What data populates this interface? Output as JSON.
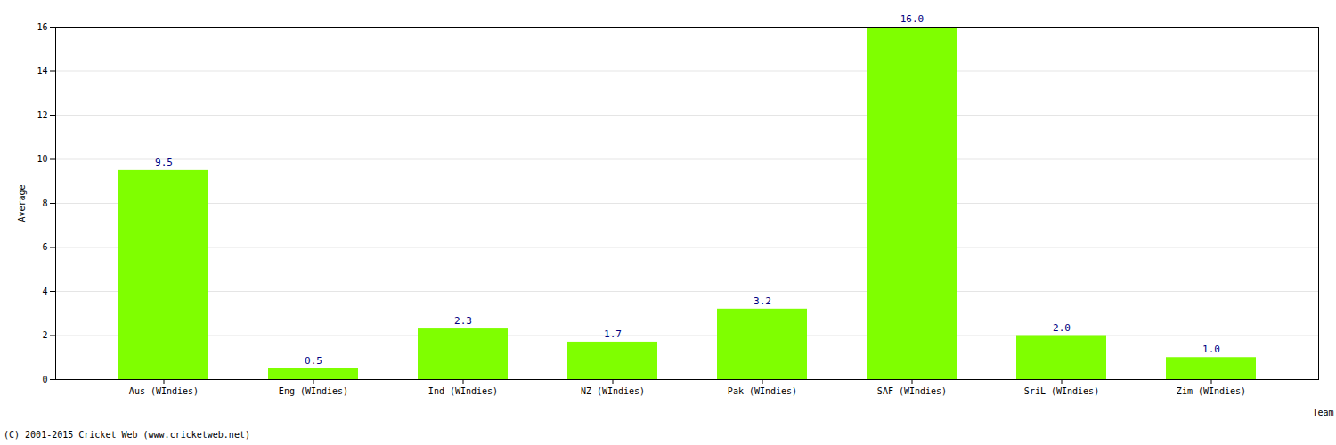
{
  "chart_data": {
    "type": "bar",
    "caption": "(C) 2001-2015 Cricket Web (www.cricketweb.net)",
    "x_label": "Team",
    "y_label": "Average",
    "categories": [
      "Aus (WIndies)",
      "Eng (WIndies)",
      "Ind (WIndies)",
      "NZ (WIndies)",
      "Pak (WIndies)",
      "SAF (WIndies)",
      "SriL (WIndies)",
      "Zim (WIndies)"
    ],
    "values": [
      9.5,
      0.5,
      2.3,
      1.7,
      3.2,
      16.0,
      2.0,
      1.0
    ],
    "value_labels": [
      "9.5",
      "0.5",
      "2.3",
      "1.7",
      "3.2",
      "16.0",
      "2.0",
      "1.0"
    ],
    "color": "#7fff00",
    "ylim": [
      0,
      16
    ],
    "yticks": [
      0,
      2,
      4,
      6,
      8,
      10,
      12,
      14,
      16
    ],
    "grid": true,
    "data_labels": true
  }
}
